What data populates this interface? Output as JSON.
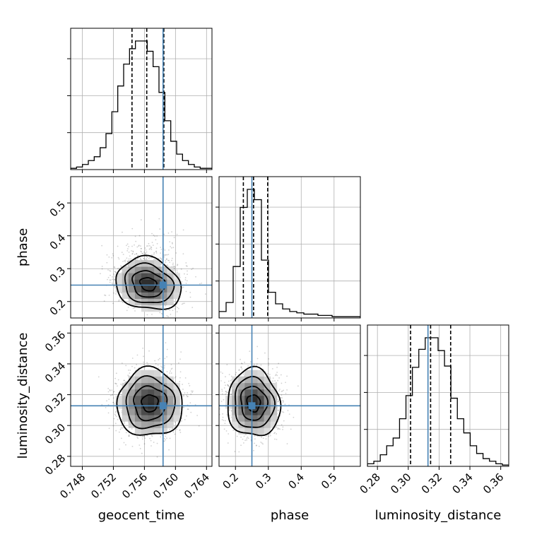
{
  "chart_data": {
    "type": "corner",
    "parameters": [
      "geocent_time",
      "phase",
      "luminosity_distance"
    ],
    "truth": {
      "geocent_time": 0.7584,
      "phase": 0.25,
      "luminosity_distance": 0.3128
    },
    "quantiles": {
      "geocent_time": [
        0.7544,
        0.7563,
        0.7585
      ],
      "phase": [
        0.224,
        0.255,
        0.298
      ],
      "luminosity_distance": [
        0.3015,
        0.3145,
        0.3275
      ]
    },
    "axes": {
      "geocent_time": {
        "lim": [
          0.7465,
          0.7647
        ],
        "ticks": [
          0.748,
          0.752,
          0.756,
          0.76,
          0.764
        ],
        "tick_labels": [
          "0.748",
          "0.752",
          "0.756",
          "0.760",
          "0.764"
        ]
      },
      "phase": {
        "lim": [
          0.15,
          0.58
        ],
        "ticks": [
          0.2,
          0.3,
          0.4,
          0.5
        ],
        "tick_labels": [
          "0.2",
          "0.3",
          "0.4",
          "0.5"
        ]
      },
      "luminosity_distance": {
        "lim": [
          0.2735,
          0.3652
        ],
        "ticks": [
          0.28,
          0.3,
          0.32,
          0.34,
          0.36
        ],
        "tick_labels": [
          "0.28",
          "0.30",
          "0.32",
          "0.34",
          "0.36"
        ]
      }
    },
    "histograms": {
      "geocent_time": {
        "edges_range": [
          0.7465,
          0.7647
        ],
        "counts": [
          1,
          2,
          4,
          7,
          10,
          17,
          28,
          45,
          65,
          82,
          94,
          100,
          100,
          92,
          80,
          60,
          38,
          22,
          12,
          7,
          4,
          2,
          1,
          1
        ]
      },
      "phase": {
        "edges_range": [
          0.15,
          0.58
        ],
        "counts": [
          5,
          12,
          40,
          86,
          100,
          92,
          45,
          20,
          11,
          7,
          5,
          4,
          3,
          3,
          2,
          2,
          1,
          1,
          1,
          1
        ]
      },
      "luminosity_distance": {
        "edges_range": [
          0.2735,
          0.3652
        ],
        "counts": [
          2,
          4,
          9,
          16,
          22,
          37,
          55,
          77,
          91,
          100,
          100,
          90,
          78,
          53,
          37,
          26,
          16,
          10,
          6,
          4,
          2,
          1
        ]
      }
    },
    "pairs": [
      {
        "x": "geocent_time",
        "y": "phase",
        "center": [
          0.7565,
          0.253
        ],
        "sigma": [
          0.0021,
          0.04
        ],
        "rho": -0.15
      },
      {
        "x": "geocent_time",
        "y": "luminosity_distance",
        "center": [
          0.7567,
          0.3145
        ],
        "sigma": [
          0.0021,
          0.011
        ],
        "rho": 0.0
      },
      {
        "x": "phase",
        "y": "luminosity_distance",
        "center": [
          0.255,
          0.3145
        ],
        "sigma": [
          0.04,
          0.011
        ],
        "rho": -0.05
      }
    ],
    "contour_levels_sigma": [
      0.5,
      1.0,
      1.5,
      2.0
    ],
    "colors": {
      "truth": "#4682b4",
      "hist": "#000000",
      "points": "#000000",
      "grid": "#b0b0b0",
      "axes": "#000000"
    },
    "grid": true,
    "legend": "none"
  }
}
